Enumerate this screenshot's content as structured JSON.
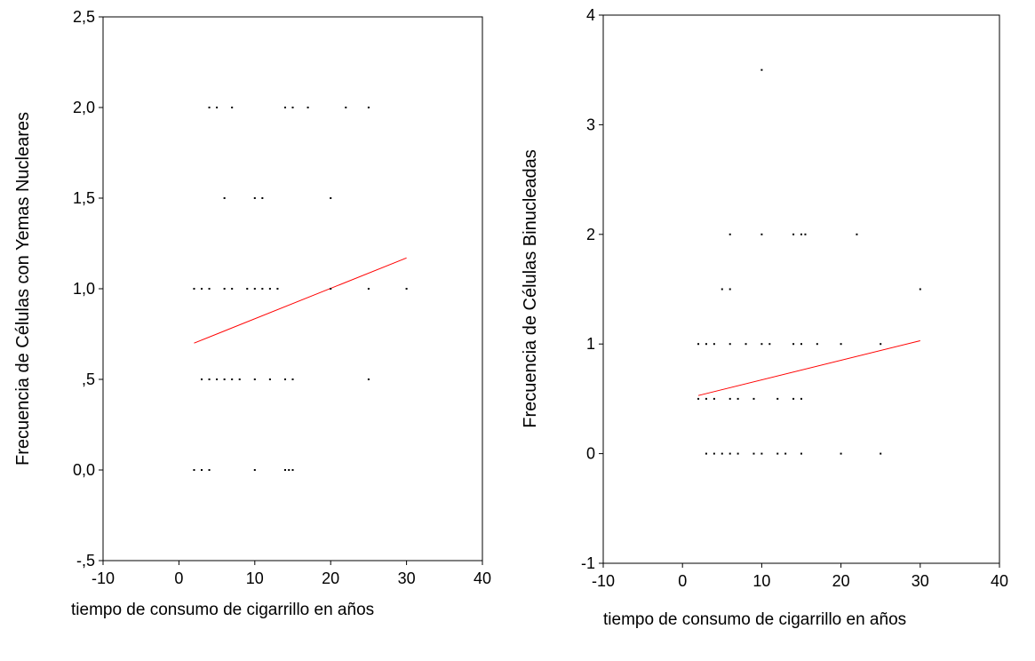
{
  "chart_data": [
    {
      "type": "scatter",
      "ylabel": "Frecuencia de Células con Yemas Nucleares",
      "xlabel": "tiempo de consumo de cigarrillo en años",
      "xlim": [
        -10,
        40
      ],
      "ylim": [
        -0.5,
        2.5
      ],
      "x_ticks": [
        -10,
        0,
        10,
        20,
        30,
        40
      ],
      "x_tick_labels": [
        "-10",
        "0",
        "10",
        "20",
        "30",
        "40"
      ],
      "y_ticks": [
        -0.5,
        0,
        0.5,
        1,
        1.5,
        2,
        2.5
      ],
      "y_tick_labels": [
        "-,5",
        "0,0",
        ",5",
        "1,0",
        "1,5",
        "2,0",
        "2,5"
      ],
      "grid": false,
      "fit_line": {
        "x": [
          2,
          30
        ],
        "y": [
          0.7,
          1.17
        ],
        "color": "#ff0000"
      },
      "points": {
        "x": [
          4,
          5,
          7,
          14,
          15,
          17,
          22,
          25,
          6,
          10,
          11,
          20,
          2,
          3,
          4,
          6,
          7,
          9,
          10,
          11,
          12,
          13,
          20,
          25,
          30,
          3,
          4,
          5,
          6,
          7,
          8,
          10,
          12,
          14,
          15,
          25,
          2,
          3,
          4,
          10,
          14,
          14.5,
          15
        ],
        "y": [
          2,
          2,
          2,
          2,
          2,
          2,
          2,
          2,
          1.5,
          1.5,
          1.5,
          1.5,
          1,
          1,
          1,
          1,
          1,
          1,
          1,
          1,
          1,
          1,
          1,
          1,
          1,
          0.5,
          0.5,
          0.5,
          0.5,
          0.5,
          0.5,
          0.5,
          0.5,
          0.5,
          0.5,
          0.5,
          0,
          0,
          0,
          0,
          0,
          0,
          0
        ]
      }
    },
    {
      "type": "scatter",
      "ylabel": "Frecuencia de Células Binucleadas",
      "xlabel": "tiempo de consumo de cigarrillo en años",
      "xlim": [
        -10,
        40
      ],
      "ylim": [
        -1,
        4
      ],
      "x_ticks": [
        -10,
        0,
        10,
        20,
        30,
        40
      ],
      "x_tick_labels": [
        "-10",
        "0",
        "10",
        "20",
        "30",
        "40"
      ],
      "y_ticks": [
        -1,
        0,
        1,
        2,
        3,
        4
      ],
      "y_tick_labels": [
        "-1",
        "0",
        "1",
        "2",
        "3",
        "4"
      ],
      "grid": false,
      "fit_line": {
        "x": [
          2,
          30
        ],
        "y": [
          0.53,
          1.03
        ],
        "color": "#ff0000"
      },
      "points": {
        "x": [
          10,
          6,
          10,
          14,
          15,
          15.5,
          22,
          5,
          6,
          30,
          2,
          3,
          4,
          6,
          8,
          10,
          11,
          14,
          15,
          17,
          20,
          25,
          2,
          3,
          4,
          6,
          7,
          9,
          12,
          14,
          15,
          3,
          4,
          5,
          6,
          7,
          9,
          10,
          12,
          13,
          15,
          20,
          25
        ],
        "y": [
          3.5,
          2,
          2,
          2,
          2,
          2,
          2,
          1.5,
          1.5,
          1.5,
          1,
          1,
          1,
          1,
          1,
          1,
          1,
          1,
          1,
          1,
          1,
          1,
          0.5,
          0.5,
          0.5,
          0.5,
          0.5,
          0.5,
          0.5,
          0.5,
          0.5,
          0,
          0,
          0,
          0,
          0,
          0,
          0,
          0,
          0,
          0,
          0,
          0
        ]
      }
    }
  ]
}
